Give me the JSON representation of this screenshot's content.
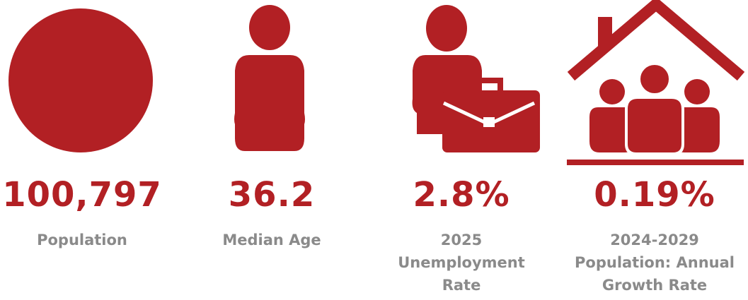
{
  "colors": {
    "accent": "#b22024",
    "label": "#8a8a8a",
    "background": "#ffffff"
  },
  "stats": [
    {
      "icon": "circle-icon",
      "value": "100,797",
      "label": "Population"
    },
    {
      "icon": "person-icon",
      "value": "36.2",
      "label": "Median Age"
    },
    {
      "icon": "person-briefcase-icon",
      "value": "2.8%",
      "label": "2025\nUnemployment\nRate"
    },
    {
      "icon": "house-family-icon",
      "value": "0.19%",
      "label": "2024-2029\nPopulation: Annual\nGrowth Rate"
    }
  ]
}
